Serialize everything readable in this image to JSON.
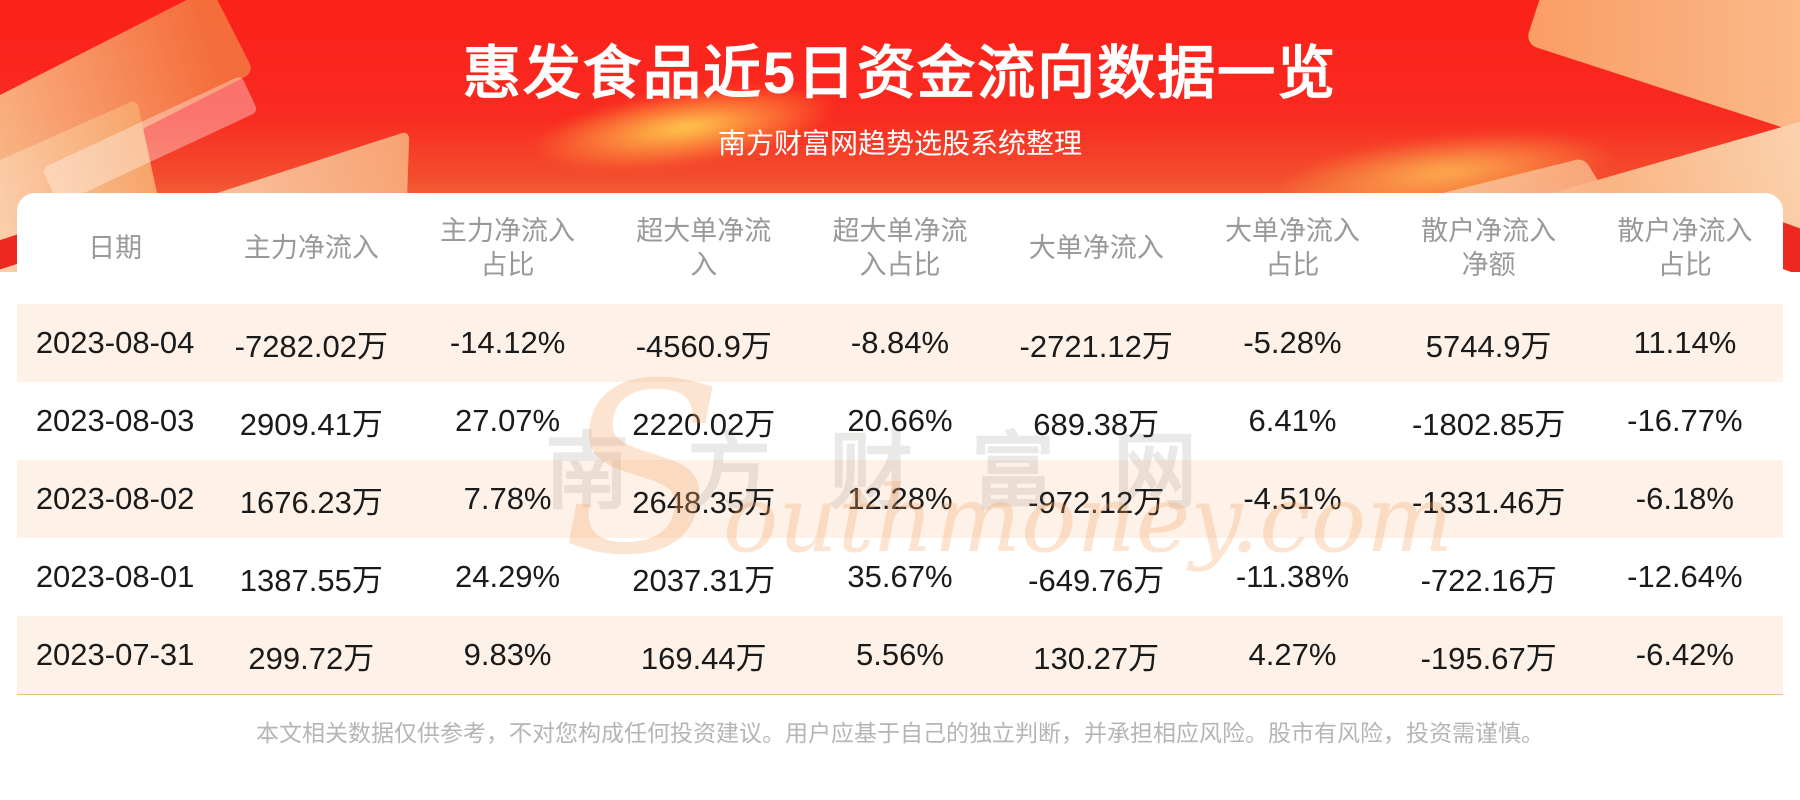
{
  "header": {
    "title": "惠发食品近5日资金流向数据一览",
    "subtitle": "南方财富网趋势选股系统整理"
  },
  "chart_data": {
    "type": "table",
    "title": "惠发食品近5日资金流向数据一览",
    "columns": [
      "日期",
      "主力净流入",
      "主力净流入占比",
      "超大单净流入",
      "超大单净流入占比",
      "大单净流入",
      "大单净流入占比",
      "散户净流入净额",
      "散户净流入占比"
    ],
    "rows": [
      [
        "2023-08-04",
        "-7282.02万",
        "-14.12%",
        "-4560.9万",
        "-8.84%",
        "-2721.12万",
        "-5.28%",
        "5744.9万",
        "11.14%"
      ],
      [
        "2023-08-03",
        "2909.41万",
        "27.07%",
        "2220.02万",
        "20.66%",
        "689.38万",
        "6.41%",
        "-1802.85万",
        "-16.77%"
      ],
      [
        "2023-08-02",
        "1676.23万",
        "7.78%",
        "2648.35万",
        "12.28%",
        "-972.12万",
        "-4.51%",
        "-1331.46万",
        "-6.18%"
      ],
      [
        "2023-08-01",
        "1387.55万",
        "24.29%",
        "2037.31万",
        "35.67%",
        "-649.76万",
        "-11.38%",
        "-722.16万",
        "-12.64%"
      ],
      [
        "2023-07-31",
        "299.72万",
        "9.83%",
        "169.44万",
        "5.56%",
        "130.27万",
        "4.27%",
        "-195.67万",
        "-6.42%"
      ]
    ]
  },
  "watermark": {
    "cn": "南方财富网",
    "en_initial": "S",
    "en_rest": "outhmoney.com"
  },
  "footer": {
    "disclaimer": "本文相关数据仅供参考，不对您构成任何投资建议。用户应基于自己的独立判断，并承担相应风险。股市有风险，投资需谨慎。"
  },
  "colors": {
    "banner_red": "#f92a20",
    "banner_orange": "#f5824b",
    "row_stripe": "#fdf1e8",
    "divider_orange": "#f2bb80",
    "column_header_text": "#999999",
    "cell_text": "#1a1a1a",
    "footer_text": "#b5b5b5",
    "title_text": "#ffffff"
  }
}
